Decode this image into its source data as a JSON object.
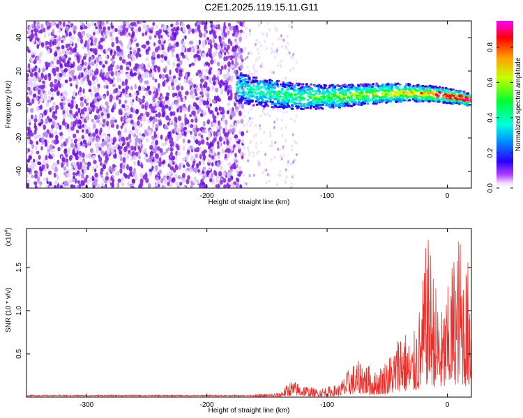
{
  "title": "C2E1.2025.119.15.11.G11",
  "chart_data": [
    {
      "type": "heatmap",
      "xlabel": "Height of straight line (km)",
      "ylabel": "Frequency (Hz)",
      "xlim": [
        -350,
        20
      ],
      "ylim": [
        -50,
        50
      ],
      "xticks": [
        -300,
        -200,
        -100,
        0
      ],
      "yticks": [
        -40,
        -20,
        0,
        20,
        40
      ],
      "colorbar": {
        "label": "Normalized spectral amplitude",
        "range": [
          0.0,
          0.95
        ],
        "ticks": [
          0.0,
          0.2,
          0.4,
          0.6,
          0.8
        ],
        "tick_labels": [
          "0.0",
          "0.2",
          "0.4",
          "0.6",
          "0.8"
        ],
        "colormap": [
          "#f4ecff",
          "#8a2be2",
          "#2a00ff",
          "#00b0ff",
          "#00ffcc",
          "#00ff40",
          "#d0ff00",
          "#ffa000",
          "#ff0000",
          "#ff00ff"
        ]
      },
      "regions": [
        {
          "x": [
            -350,
            -170
          ],
          "y": [
            -50,
            50
          ],
          "description": "broadband noise",
          "amplitude": 0.05
        },
        {
          "x": [
            -170,
            -125
          ],
          "y": [
            -50,
            50
          ],
          "description": "sparse noise",
          "amplitude": 0.02
        },
        {
          "x": [
            -175,
            20
          ],
          "y_center_start": 10,
          "y_center_end": 2,
          "description": "signal band",
          "amplitude_max": 0.95
        }
      ],
      "grid": false
    },
    {
      "type": "line",
      "xlabel": "Height of straight line (km)",
      "ylabel": "SNR (10 * v/v)",
      "y_multiplier_label": "(x10",
      "y_multiplier_exp": "4",
      "y_multiplier_close": ")",
      "xlim": [
        -350,
        20
      ],
      "ylim": [
        0,
        1.95
      ],
      "xticks": [
        -300,
        -200,
        -100,
        0
      ],
      "yticks": [
        0.5,
        1.0,
        1.5
      ],
      "ytick_labels": [
        "0.5",
        "1.0",
        "1.5"
      ],
      "color": "#e8302a",
      "grid": false,
      "envelope": [
        {
          "x": -350,
          "y": 0.02
        },
        {
          "x": -200,
          "y": 0.02
        },
        {
          "x": -160,
          "y": 0.03
        },
        {
          "x": -140,
          "y": 0.05
        },
        {
          "x": -130,
          "y": 0.2
        },
        {
          "x": -110,
          "y": 0.1
        },
        {
          "x": -90,
          "y": 0.15
        },
        {
          "x": -80,
          "y": 0.38
        },
        {
          "x": -70,
          "y": 0.45
        },
        {
          "x": -60,
          "y": 0.3
        },
        {
          "x": -45,
          "y": 0.55
        },
        {
          "x": -38,
          "y": 0.9
        },
        {
          "x": -30,
          "y": 0.6
        },
        {
          "x": -22,
          "y": 1.15
        },
        {
          "x": -18,
          "y": 1.75
        },
        {
          "x": -15,
          "y": 1.9
        },
        {
          "x": -10,
          "y": 1.35
        },
        {
          "x": -5,
          "y": 1.0
        },
        {
          "x": 0,
          "y": 1.25
        },
        {
          "x": 5,
          "y": 1.7
        },
        {
          "x": 10,
          "y": 1.95
        },
        {
          "x": 15,
          "y": 1.55
        },
        {
          "x": 20,
          "y": 1.7
        }
      ]
    }
  ]
}
